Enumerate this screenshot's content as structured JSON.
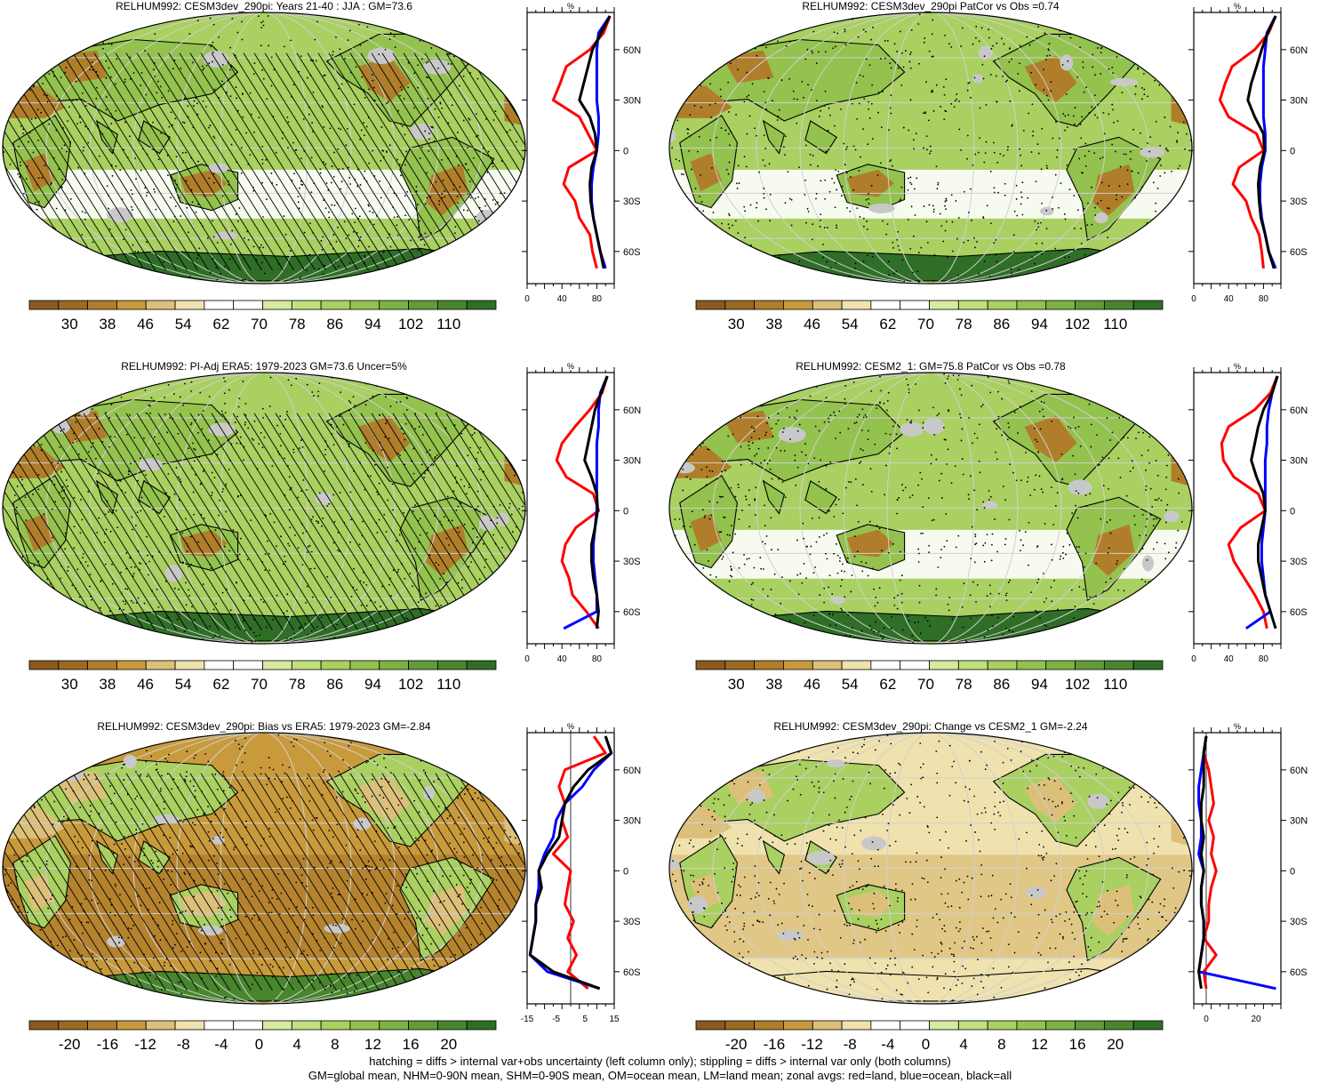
{
  "panels": [
    {
      "title": "RELHUM992: CESM3dev_290pi: Years 21-40 : JJA : GM=73.6",
      "map": {
        "hatching": true,
        "stippling": true,
        "theme": "abs"
      },
      "colorbar": {
        "labels": [
          "30",
          "38",
          "46",
          "54",
          "62",
          "70",
          "78",
          "86",
          "94",
          "102",
          "110"
        ],
        "kind": "abs"
      },
      "zonal": {
        "unit": "%",
        "xticks": [
          "0",
          "40",
          "80"
        ],
        "xlim": [
          0,
          100
        ],
        "zero_line": false,
        "right_ylabels": true
      }
    },
    {
      "title": "RELHUM992: CESM3dev_290pi PatCor vs Obs =0.74",
      "map": {
        "hatching": false,
        "stippling": true,
        "theme": "abs"
      },
      "colorbar": {
        "labels": [
          "30",
          "38",
          "46",
          "54",
          "62",
          "70",
          "78",
          "86",
          "94",
          "102",
          "110"
        ],
        "kind": "abs"
      },
      "zonal": {
        "unit": "%",
        "xticks": [
          "0",
          "40",
          "80"
        ],
        "xlim": [
          0,
          100
        ],
        "zero_line": false,
        "right_ylabels": true
      }
    },
    {
      "title": "RELHUM992: PI-Adj ERA5: 1979-2023 GM=73.6 Uncer=5%",
      "map": {
        "hatching": true,
        "stippling": true,
        "theme": "abs"
      },
      "colorbar": {
        "labels": [
          "30",
          "38",
          "46",
          "54",
          "62",
          "70",
          "78",
          "86",
          "94",
          "102",
          "110"
        ],
        "kind": "abs"
      },
      "zonal": {
        "unit": "%",
        "xticks": [
          "0",
          "40",
          "80"
        ],
        "xlim": [
          0,
          100
        ],
        "zero_line": false,
        "right_ylabels": true
      }
    },
    {
      "title": "RELHUM992: CESM2_1: GM=75.8 PatCor vs Obs =0.78",
      "map": {
        "hatching": false,
        "stippling": true,
        "theme": "abs"
      },
      "colorbar": {
        "labels": [
          "30",
          "38",
          "46",
          "54",
          "62",
          "70",
          "78",
          "86",
          "94",
          "102",
          "110"
        ],
        "kind": "abs"
      },
      "zonal": {
        "unit": "%",
        "xticks": [
          "0",
          "40",
          "80"
        ],
        "xlim": [
          0,
          100
        ],
        "zero_line": false,
        "right_ylabels": true
      }
    },
    {
      "title": "RELHUM992: CESM3dev_290pi: Bias vs ERA5: 1979-2023 GM=-2.84",
      "map": {
        "hatching": true,
        "stippling": true,
        "theme": "bias"
      },
      "colorbar": {
        "labels": [
          "-20",
          "-16",
          "-12",
          "-8",
          "-4",
          "0",
          "4",
          "8",
          "12",
          "16",
          "20"
        ],
        "kind": "diff"
      },
      "zonal": {
        "unit": "%",
        "xticks": [
          "-15",
          "-5",
          "5",
          "15"
        ],
        "xlim": [
          -15,
          15
        ],
        "zero_line": true,
        "right_ylabels": true
      }
    },
    {
      "title": "RELHUM992: CESM3dev_290pi: Change vs CESM2_1 GM=-2.24",
      "map": {
        "hatching": false,
        "stippling": true,
        "theme": "change"
      },
      "colorbar": {
        "labels": [
          "-20",
          "-16",
          "-12",
          "-8",
          "-4",
          "0",
          "4",
          "8",
          "12",
          "16",
          "20"
        ],
        "kind": "diff"
      },
      "zonal": {
        "unit": "%",
        "xticks": [
          "0",
          "20"
        ],
        "xlim": [
          -5,
          30
        ],
        "zero_line": true,
        "right_ylabels": true
      }
    }
  ],
  "latitude_labels": [
    "60N",
    "30N",
    "0",
    "30S",
    "60S"
  ],
  "zonal_series": [
    {
      "lat": [
        80,
        70,
        60,
        50,
        40,
        30,
        20,
        10,
        0,
        -10,
        -20,
        -30,
        -40,
        -50,
        -60,
        -70
      ],
      "land": [
        95,
        88,
        72,
        45,
        38,
        30,
        60,
        70,
        80,
        48,
        42,
        55,
        60,
        72,
        75,
        80
      ],
      "ocean": [
        95,
        82,
        80,
        80,
        80,
        80,
        82,
        82,
        80,
        76,
        74,
        74,
        76,
        80,
        84,
        90
      ],
      "all": [
        95,
        85,
        75,
        70,
        65,
        60,
        72,
        78,
        80,
        74,
        72,
        73,
        76,
        80,
        84,
        88
      ]
    },
    {
      "lat": [
        80,
        70,
        60,
        50,
        40,
        30,
        20,
        10,
        0,
        -10,
        -20,
        -30,
        -40,
        -50,
        -60,
        -70
      ],
      "land": [
        94,
        86,
        70,
        44,
        36,
        30,
        40,
        72,
        80,
        52,
        45,
        60,
        66,
        75,
        78,
        80
      ],
      "ocean": [
        94,
        84,
        82,
        80,
        80,
        80,
        80,
        82,
        82,
        78,
        76,
        76,
        78,
        82,
        86,
        94
      ],
      "all": [
        94,
        85,
        78,
        72,
        66,
        62,
        70,
        80,
        81,
        76,
        74,
        75,
        77,
        82,
        86,
        92
      ]
    },
    {
      "lat": [
        80,
        70,
        60,
        50,
        40,
        30,
        20,
        10,
        0,
        -10,
        -20,
        -30,
        -40,
        -50,
        -60,
        -70
      ],
      "land": [
        92,
        86,
        72,
        55,
        40,
        34,
        45,
        76,
        82,
        56,
        44,
        40,
        48,
        52,
        68,
        82
      ],
      "ocean": [
        92,
        84,
        82,
        82,
        80,
        80,
        80,
        80,
        80,
        78,
        76,
        76,
        78,
        80,
        80,
        42
      ],
      "all": [
        92,
        85,
        78,
        74,
        70,
        66,
        74,
        80,
        81,
        78,
        74,
        74,
        76,
        80,
        82,
        80
      ]
    },
    {
      "lat": [
        80,
        70,
        60,
        50,
        40,
        30,
        20,
        10,
        0,
        -10,
        -20,
        -30,
        -40,
        -50,
        -60,
        -70
      ],
      "land": [
        96,
        88,
        70,
        40,
        32,
        34,
        46,
        74,
        82,
        54,
        40,
        46,
        58,
        70,
        80,
        84
      ],
      "ocean": [
        96,
        90,
        86,
        84,
        84,
        82,
        82,
        82,
        82,
        80,
        78,
        78,
        80,
        82,
        88,
        60
      ],
      "all": [
        96,
        90,
        80,
        74,
        70,
        66,
        72,
        80,
        82,
        78,
        74,
        74,
        78,
        82,
        88,
        94
      ]
    },
    {
      "lat": [
        80,
        70,
        60,
        50,
        40,
        30,
        20,
        10,
        0,
        -10,
        -20,
        -30,
        -40,
        -50,
        -60,
        -70
      ],
      "land": [
        8,
        12,
        -2,
        -4,
        -2,
        -3,
        -1,
        -6,
        0,
        -1,
        -2,
        1,
        -1,
        2,
        -1,
        6
      ],
      "ocean": [
        12,
        14,
        8,
        4,
        -2,
        -5,
        -6,
        -9,
        -11,
        -11,
        -12,
        -12,
        -13,
        -14,
        -8,
        10
      ],
      "all": [
        12,
        14,
        6,
        1,
        -2,
        -3,
        -4,
        -8,
        -11,
        -10,
        -12,
        -12,
        -13,
        -14,
        -6,
        10
      ]
    },
    {
      "lat": [
        80,
        70,
        60,
        50,
        40,
        30,
        20,
        10,
        0,
        -10,
        -20,
        -30,
        -40,
        -50,
        -60,
        -70
      ],
      "land": [
        0,
        -1,
        1,
        2,
        3,
        1,
        3,
        2,
        4,
        2,
        1,
        1,
        -1,
        4,
        -1,
        0
      ],
      "ocean": [
        0,
        -1,
        -2,
        -3,
        -3,
        -2,
        -2,
        -3,
        -1,
        -2,
        -2,
        -1,
        -1,
        -2,
        -3,
        28
      ],
      "all": [
        0,
        -1,
        -1,
        -1,
        -2,
        -2,
        -1,
        -2,
        -1,
        -2,
        -2,
        -1,
        -1,
        -2,
        -3,
        -2
      ]
    }
  ],
  "footer": {
    "line1": "hatching = diffs > internal var+obs uncertainty (left column only); stippling = diffs > internal var only (both columns)",
    "line2": "GM=global mean, NHM=0-90N mean, SHM=0-90S mean, OM=ocean mean, LM=land mean; zonal avgs: red=land, blue=ocean, black=all"
  },
  "colors": {
    "abs": [
      "#8a5a1e",
      "#9b6a22",
      "#b07d2a",
      "#c89a3c",
      "#dcc07a",
      "#efe2ae",
      "#ffffff",
      "#ffffff",
      "#d7eba0",
      "#c2df7e",
      "#a9d060",
      "#93c24e",
      "#7cb243",
      "#629c38",
      "#48862e",
      "#2f6e26"
    ],
    "land": "#ff0000",
    "ocean": "#0000ff",
    "all": "#000000"
  }
}
